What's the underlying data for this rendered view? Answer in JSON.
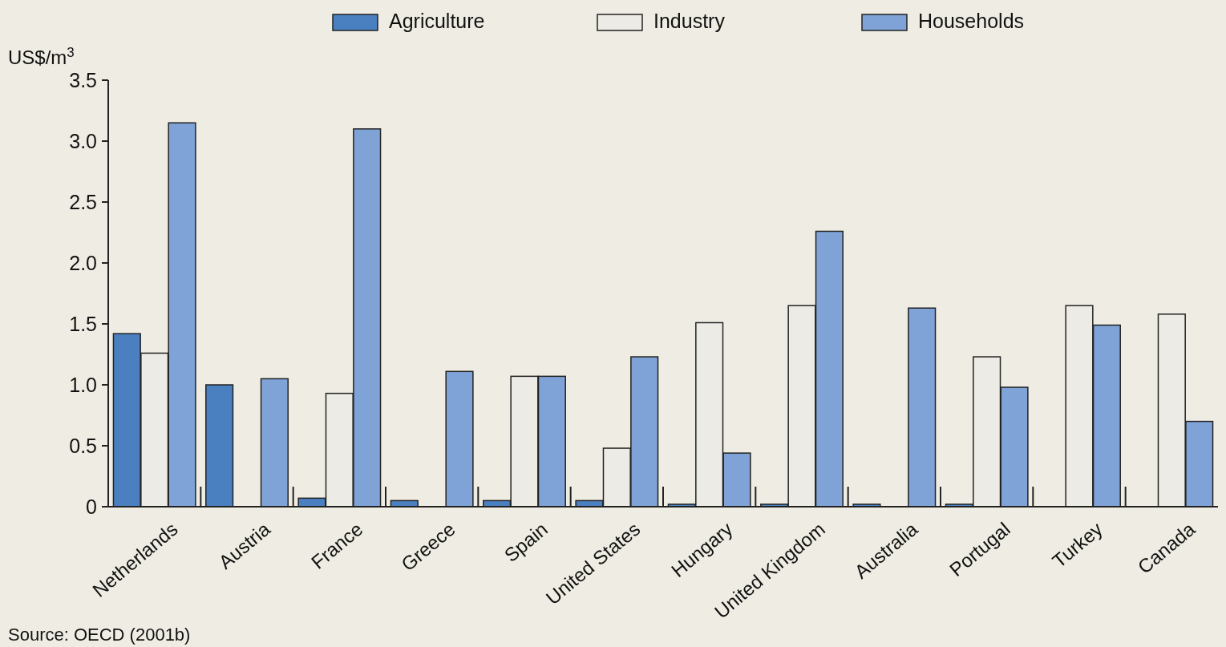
{
  "chart_data": {
    "type": "bar",
    "ylabel": "US$/m$^{3}$",
    "categories": [
      "Netherlands",
      "Austria",
      "France",
      "Greece",
      "Spain",
      "United States",
      "Hungary",
      "United Kingdom",
      "Australia",
      "Portugal",
      "Turkey",
      "Canada"
    ],
    "series": [
      {
        "name": "Agriculture",
        "color": "#4a7fc0",
        "values": [
          1.42,
          1.0,
          0.07,
          0.05,
          0.05,
          0.05,
          0.02,
          0.02,
          0.02,
          0.02,
          null,
          null
        ]
      },
      {
        "name": "Industry",
        "color": "#ecebe5",
        "values": [
          1.26,
          null,
          0.93,
          null,
          1.07,
          0.48,
          1.51,
          1.65,
          null,
          1.23,
          1.65,
          1.58
        ]
      },
      {
        "name": "Households",
        "color": "#7fa3d6",
        "values": [
          3.15,
          1.05,
          3.1,
          1.11,
          1.07,
          1.23,
          0.44,
          2.26,
          1.63,
          0.98,
          1.49,
          0.7
        ]
      }
    ],
    "ylim": [
      0,
      3.5
    ],
    "yticks": [
      {
        "value": 0,
        "label": "0"
      },
      0.5,
      {
        "value": 1,
        "label": "1.0"
      },
      1.5,
      {
        "value": 2,
        "label": "2.0"
      },
      2.5,
      {
        "value": 3,
        "label": "3.0"
      },
      3.5
    ],
    "legend": "top",
    "annotations": [
      "Source: OECD (2001b)"
    ]
  }
}
